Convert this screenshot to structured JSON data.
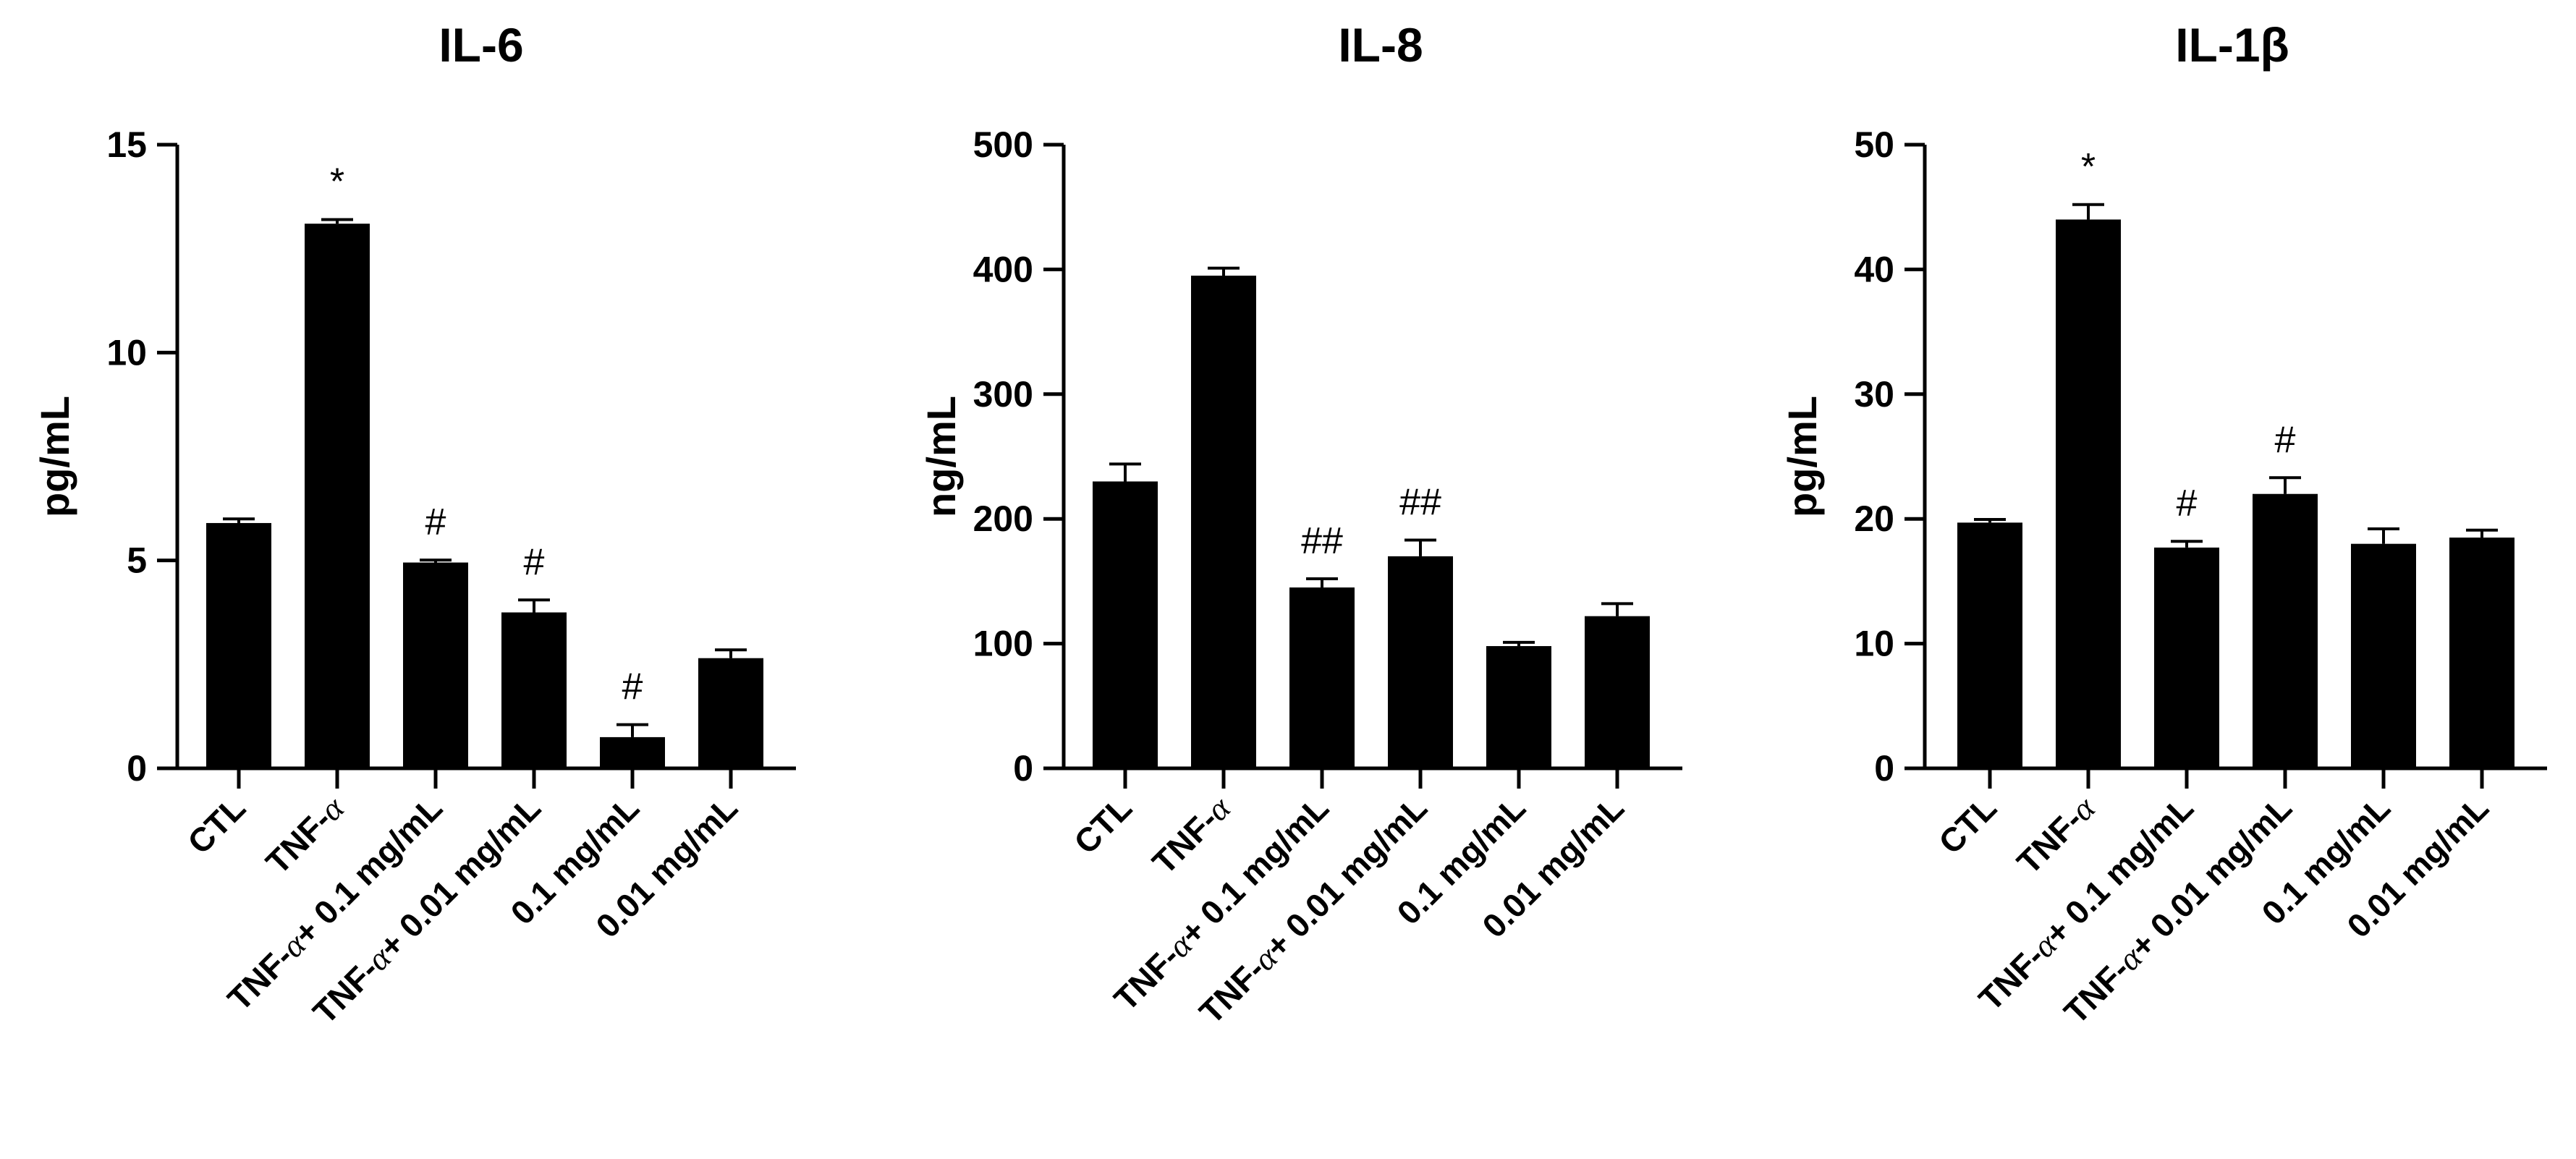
{
  "chart_data": [
    {
      "type": "bar",
      "title": "IL-6",
      "ylabel": "pg/mL",
      "ylim": [
        0,
        15
      ],
      "yticks": [
        0,
        5,
        10,
        15
      ],
      "categories": [
        [
          "CTL"
        ],
        [
          "TNF-",
          "α"
        ],
        [
          "TNF-",
          "α",
          "+ 0.1 mg/mL"
        ],
        [
          "TNF-",
          "α",
          "+ 0.01 mg/mL"
        ],
        [
          "0.1 mg/mL"
        ],
        [
          "0.01 mg/mL"
        ]
      ],
      "values": [
        5.9,
        13.1,
        4.95,
        3.75,
        0.75,
        2.65
      ],
      "errors": [
        0.1,
        0.1,
        0.06,
        0.3,
        0.3,
        0.2
      ],
      "annotations": [
        "",
        "*",
        "#",
        "#",
        "#",
        ""
      ]
    },
    {
      "type": "bar",
      "title": "IL-8",
      "ylabel": "ng/mL",
      "ylim": [
        0,
        500
      ],
      "yticks": [
        0,
        100,
        200,
        300,
        400,
        500
      ],
      "categories": [
        [
          "CTL"
        ],
        [
          "TNF-",
          "α"
        ],
        [
          "TNF-",
          "α",
          "+ 0.1 mg/mL"
        ],
        [
          "TNF-",
          "α",
          "+ 0.01 mg/mL"
        ],
        [
          "0.1 mg/mL"
        ],
        [
          "0.01 mg/mL"
        ]
      ],
      "values": [
        230,
        395,
        145,
        170,
        98,
        122
      ],
      "errors": [
        14,
        6,
        7,
        13,
        3,
        10
      ],
      "annotations": [
        "",
        "",
        "##",
        "##",
        "",
        ""
      ]
    },
    {
      "type": "bar",
      "title": "IL-1β",
      "ylabel": "pg/mL",
      "ylim": [
        0,
        50
      ],
      "yticks": [
        0,
        10,
        20,
        30,
        40,
        50
      ],
      "categories": [
        [
          "CTL"
        ],
        [
          "TNF-",
          "α"
        ],
        [
          "TNF-",
          "α",
          "+ 0.1 mg/mL"
        ],
        [
          "TNF-",
          "α",
          "+ 0.01 mg/mL"
        ],
        [
          "0.1 mg/mL"
        ],
        [
          "0.01 mg/mL"
        ]
      ],
      "values": [
        19.7,
        44,
        17.7,
        22,
        18,
        18.5
      ],
      "errors": [
        0.25,
        1.2,
        0.5,
        1.3,
        1.2,
        0.6
      ],
      "annotations": [
        "",
        "*",
        "#",
        "#",
        "",
        ""
      ]
    }
  ],
  "colors": {
    "bar": "#000000",
    "axis": "#000000"
  }
}
